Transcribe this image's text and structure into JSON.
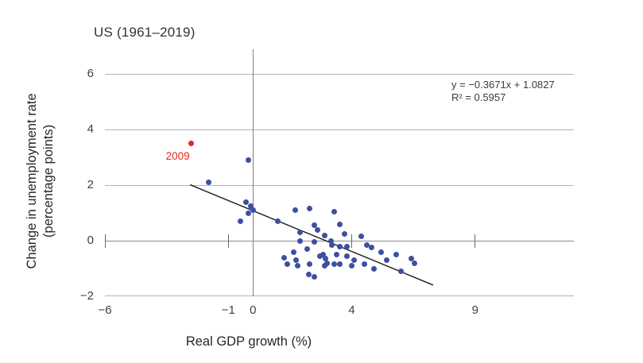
{
  "chart_data": {
    "type": "scatter",
    "title": "US (1961–2019)",
    "xlabel": "Real GDP growth (%)",
    "ylabel_line1": "Change in unemployment rate",
    "ylabel_line2": "(percentage points)",
    "xlim": [
      -6,
      13
    ],
    "ylim": [
      -2,
      6.9
    ],
    "grid": "horizontal-only",
    "legend": "none",
    "y_ticks": [
      {
        "value": 6,
        "label": "6"
      },
      {
        "value": 4,
        "label": "4"
      },
      {
        "value": 2,
        "label": "2"
      },
      {
        "value": 0,
        "label": "0"
      },
      {
        "value": -2,
        "label": "−2"
      }
    ],
    "x_ticks": [
      {
        "value": -6,
        "label": "−6"
      },
      {
        "value": -1,
        "label": "−1"
      },
      {
        "value": 0,
        "label": "0"
      },
      {
        "value": 4,
        "label": "4"
      },
      {
        "value": 9,
        "label": "9"
      }
    ],
    "y_gridlines": [
      6,
      4,
      2,
      -2
    ],
    "x_tick_marks": [
      -6,
      -1,
      4,
      9
    ],
    "series": [
      {
        "name": "annual-observations",
        "color": "#3e4fa3",
        "points": [
          [
            -1.8,
            2.1
          ],
          [
            -0.2,
            2.9
          ],
          [
            -0.3,
            1.4
          ],
          [
            -0.1,
            1.25
          ],
          [
            0.0,
            1.1
          ],
          [
            -0.2,
            1.0
          ],
          [
            -0.5,
            0.7
          ],
          [
            1.0,
            0.7
          ],
          [
            1.7,
            1.1
          ],
          [
            2.3,
            1.15
          ],
          [
            3.3,
            1.05
          ],
          [
            2.5,
            0.55
          ],
          [
            2.6,
            0.4
          ],
          [
            3.5,
            0.6
          ],
          [
            1.9,
            0.3
          ],
          [
            2.9,
            0.2
          ],
          [
            3.7,
            0.25
          ],
          [
            4.4,
            0.15
          ],
          [
            1.9,
            0.0
          ],
          [
            2.5,
            -0.05
          ],
          [
            3.15,
            0.0
          ],
          [
            3.2,
            -0.15
          ],
          [
            3.5,
            -0.2
          ],
          [
            3.8,
            -0.2
          ],
          [
            1.25,
            -0.6
          ],
          [
            1.65,
            -0.4
          ],
          [
            1.4,
            -0.85
          ],
          [
            1.75,
            -0.7
          ],
          [
            1.8,
            -0.9
          ],
          [
            2.2,
            -0.3
          ],
          [
            2.3,
            -0.85
          ],
          [
            2.7,
            -0.55
          ],
          [
            2.85,
            -0.5
          ],
          [
            2.95,
            -0.65
          ],
          [
            3.0,
            -0.8
          ],
          [
            2.9,
            -0.9
          ],
          [
            2.25,
            -1.2
          ],
          [
            2.5,
            -1.3
          ],
          [
            3.3,
            -0.85
          ],
          [
            3.5,
            -0.85
          ],
          [
            3.4,
            -0.5
          ],
          [
            3.8,
            -0.55
          ],
          [
            4.0,
            -0.9
          ],
          [
            4.1,
            -0.7
          ],
          [
            4.5,
            -0.85
          ],
          [
            4.6,
            -0.15
          ],
          [
            4.8,
            -0.25
          ],
          [
            5.2,
            -0.4
          ],
          [
            5.8,
            -0.5
          ],
          [
            5.4,
            -0.7
          ],
          [
            4.9,
            -1.0
          ],
          [
            6.0,
            -1.1
          ],
          [
            6.4,
            -0.65
          ],
          [
            6.55,
            -0.8
          ]
        ]
      },
      {
        "name": "2009-highlight",
        "color": "#e8251f",
        "label": "2009",
        "points": [
          [
            -2.5,
            3.5
          ]
        ]
      }
    ],
    "trendline": {
      "slope": -0.3671,
      "intercept": 1.0827,
      "x_start": -2.55,
      "x_end": 7.3,
      "color": "#1a1a1a"
    },
    "annotation": {
      "line1": "y = −0.3671x + 1.0827",
      "line2": "R² = 0.5957"
    }
  }
}
